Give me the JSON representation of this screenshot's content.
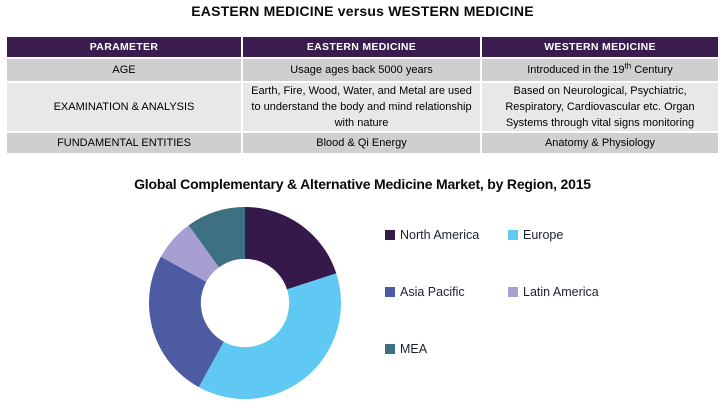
{
  "page_title": "EASTERN MEDICINE versus WESTERN MEDICINE",
  "comparison_table": {
    "headers": [
      "PARAMETER",
      "EASTERN MEDICINE",
      "WESTERN MEDICINE"
    ],
    "rows": [
      {
        "parameter": "AGE",
        "eastern": "Usage ages back 5000 years",
        "western_pre": "Introduced in the 19",
        "western_sup": "th",
        "western_post": " Century"
      },
      {
        "parameter": "EXAMINATION & ANALYSIS",
        "eastern": "Earth, Fire, Wood, Water, and Metal are used to understand the body and mind relationship with nature",
        "western": "Based on Neurological, Psychiatric, Respiratory, Cardiovascular etc. Organ Systems through vital signs monitoring"
      },
      {
        "parameter": "FUNDAMENTAL ENTITIES",
        "eastern": "Blood & Qi Energy",
        "western": "Anatomy & Physiology"
      }
    ],
    "colors": {
      "header_bg": "#3a1d4e",
      "header_text": "#ffffff",
      "row_odd_bg": "#d0cece",
      "row_even_bg": "#e9e8e9"
    }
  },
  "chart_data": {
    "type": "pie",
    "donut": true,
    "title": "Global Complementary & Alternative Medicine Market, by Region, 2015",
    "start_angle_deg": 0,
    "inner_radius_ratio": 0.46,
    "legend_position": "right",
    "grid": false,
    "segments": [
      {
        "label": "North America",
        "value_pct": 20,
        "color": "#35194a"
      },
      {
        "label": "Europe",
        "value_pct": 38,
        "color": "#5fc9f3"
      },
      {
        "label": "Asia Pacific",
        "value_pct": 25,
        "color": "#4d5ba3"
      },
      {
        "label": "Latin America",
        "value_pct": 7,
        "color": "#a79ed1"
      },
      {
        "label": "MEA",
        "value_pct": 10,
        "color": "#3d7081"
      }
    ]
  }
}
